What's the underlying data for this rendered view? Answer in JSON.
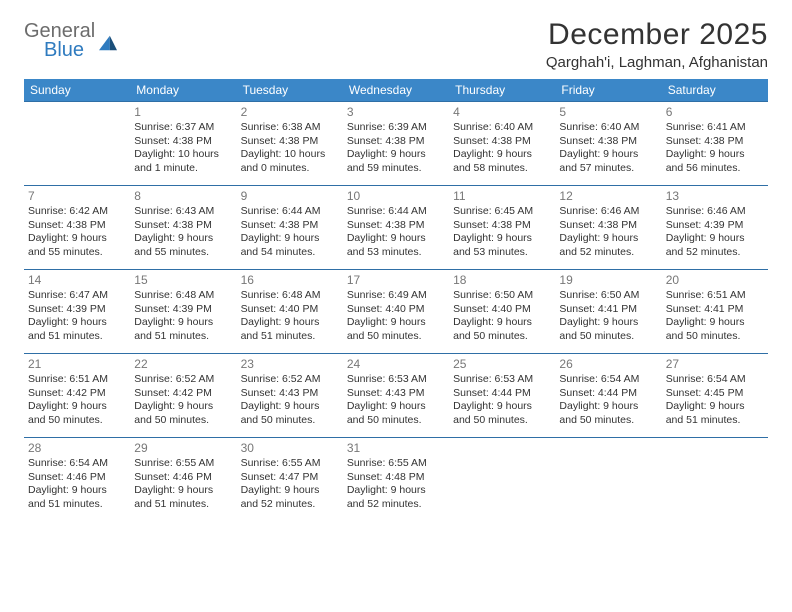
{
  "logo": {
    "general": "General",
    "blue": "Blue"
  },
  "title": "December 2025",
  "location": "Qarghah'i, Laghman, Afghanistan",
  "colors": {
    "header_bg": "#3b87c8",
    "header_text": "#ffffff",
    "row_border": "#2f6fa6",
    "daynum": "#777777",
    "body_text": "#333333",
    "logo_gray": "#6c6c6c",
    "logo_blue": "#2f7bbf"
  },
  "weekdays": [
    "Sunday",
    "Monday",
    "Tuesday",
    "Wednesday",
    "Thursday",
    "Friday",
    "Saturday"
  ],
  "weeks": [
    [
      null,
      {
        "n": "1",
        "sr": "6:37 AM",
        "ss": "4:38 PM",
        "dl": "10 hours and 1 minute."
      },
      {
        "n": "2",
        "sr": "6:38 AM",
        "ss": "4:38 PM",
        "dl": "10 hours and 0 minutes."
      },
      {
        "n": "3",
        "sr": "6:39 AM",
        "ss": "4:38 PM",
        "dl": "9 hours and 59 minutes."
      },
      {
        "n": "4",
        "sr": "6:40 AM",
        "ss": "4:38 PM",
        "dl": "9 hours and 58 minutes."
      },
      {
        "n": "5",
        "sr": "6:40 AM",
        "ss": "4:38 PM",
        "dl": "9 hours and 57 minutes."
      },
      {
        "n": "6",
        "sr": "6:41 AM",
        "ss": "4:38 PM",
        "dl": "9 hours and 56 minutes."
      }
    ],
    [
      {
        "n": "7",
        "sr": "6:42 AM",
        "ss": "4:38 PM",
        "dl": "9 hours and 55 minutes."
      },
      {
        "n": "8",
        "sr": "6:43 AM",
        "ss": "4:38 PM",
        "dl": "9 hours and 55 minutes."
      },
      {
        "n": "9",
        "sr": "6:44 AM",
        "ss": "4:38 PM",
        "dl": "9 hours and 54 minutes."
      },
      {
        "n": "10",
        "sr": "6:44 AM",
        "ss": "4:38 PM",
        "dl": "9 hours and 53 minutes."
      },
      {
        "n": "11",
        "sr": "6:45 AM",
        "ss": "4:38 PM",
        "dl": "9 hours and 53 minutes."
      },
      {
        "n": "12",
        "sr": "6:46 AM",
        "ss": "4:38 PM",
        "dl": "9 hours and 52 minutes."
      },
      {
        "n": "13",
        "sr": "6:46 AM",
        "ss": "4:39 PM",
        "dl": "9 hours and 52 minutes."
      }
    ],
    [
      {
        "n": "14",
        "sr": "6:47 AM",
        "ss": "4:39 PM",
        "dl": "9 hours and 51 minutes."
      },
      {
        "n": "15",
        "sr": "6:48 AM",
        "ss": "4:39 PM",
        "dl": "9 hours and 51 minutes."
      },
      {
        "n": "16",
        "sr": "6:48 AM",
        "ss": "4:40 PM",
        "dl": "9 hours and 51 minutes."
      },
      {
        "n": "17",
        "sr": "6:49 AM",
        "ss": "4:40 PM",
        "dl": "9 hours and 50 minutes."
      },
      {
        "n": "18",
        "sr": "6:50 AM",
        "ss": "4:40 PM",
        "dl": "9 hours and 50 minutes."
      },
      {
        "n": "19",
        "sr": "6:50 AM",
        "ss": "4:41 PM",
        "dl": "9 hours and 50 minutes."
      },
      {
        "n": "20",
        "sr": "6:51 AM",
        "ss": "4:41 PM",
        "dl": "9 hours and 50 minutes."
      }
    ],
    [
      {
        "n": "21",
        "sr": "6:51 AM",
        "ss": "4:42 PM",
        "dl": "9 hours and 50 minutes."
      },
      {
        "n": "22",
        "sr": "6:52 AM",
        "ss": "4:42 PM",
        "dl": "9 hours and 50 minutes."
      },
      {
        "n": "23",
        "sr": "6:52 AM",
        "ss": "4:43 PM",
        "dl": "9 hours and 50 minutes."
      },
      {
        "n": "24",
        "sr": "6:53 AM",
        "ss": "4:43 PM",
        "dl": "9 hours and 50 minutes."
      },
      {
        "n": "25",
        "sr": "6:53 AM",
        "ss": "4:44 PM",
        "dl": "9 hours and 50 minutes."
      },
      {
        "n": "26",
        "sr": "6:54 AM",
        "ss": "4:44 PM",
        "dl": "9 hours and 50 minutes."
      },
      {
        "n": "27",
        "sr": "6:54 AM",
        "ss": "4:45 PM",
        "dl": "9 hours and 51 minutes."
      }
    ],
    [
      {
        "n": "28",
        "sr": "6:54 AM",
        "ss": "4:46 PM",
        "dl": "9 hours and 51 minutes."
      },
      {
        "n": "29",
        "sr": "6:55 AM",
        "ss": "4:46 PM",
        "dl": "9 hours and 51 minutes."
      },
      {
        "n": "30",
        "sr": "6:55 AM",
        "ss": "4:47 PM",
        "dl": "9 hours and 52 minutes."
      },
      {
        "n": "31",
        "sr": "6:55 AM",
        "ss": "4:48 PM",
        "dl": "9 hours and 52 minutes."
      },
      null,
      null,
      null
    ]
  ],
  "labels": {
    "sunrise": "Sunrise:",
    "sunset": "Sunset:",
    "daylight": "Daylight:"
  }
}
